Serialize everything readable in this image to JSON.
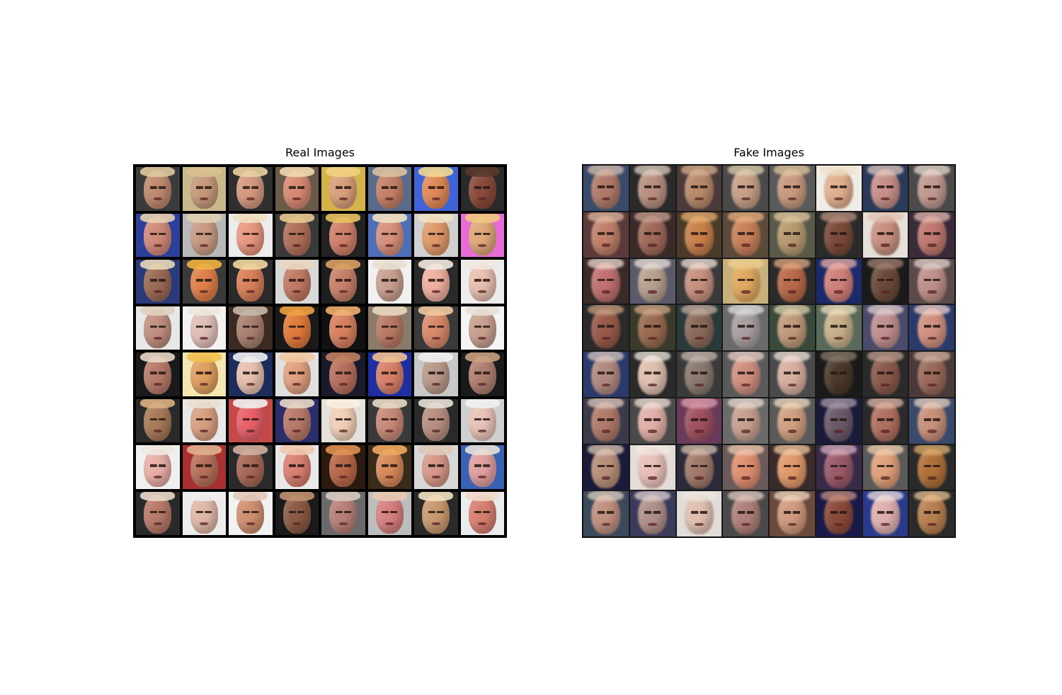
{
  "panels": {
    "real": {
      "title": "Real Images"
    },
    "fake": {
      "title": "Fake Images"
    }
  },
  "colors": {
    "real_backgrounds": [
      "#3b3b3b",
      "#c9b98a",
      "#2f2f2f",
      "#6b5a4a",
      "#d4b44a",
      "#5a6a8a",
      "#3f63d8",
      "#2a2a2a",
      "#2c3f9a",
      "#b8b8b8",
      "#ececec",
      "#3a3a3a",
      "#222222",
      "#4f6eb8",
      "#d0d0d0",
      "#e96bd6",
      "#2a3a7a",
      "#3a3a3a",
      "#2a2a2a",
      "#d8d8d8",
      "#1e1e1e",
      "#f0f0f0",
      "#2a2a2a",
      "#ececec",
      "#e8e8e8",
      "#f2f2f2",
      "#3a2a22",
      "#1a1a1a",
      "#111111",
      "#8a7a6a",
      "#3a3a3a",
      "#f4f4f4",
      "#1a1a1a",
      "#f3e6b0",
      "#1d2c5a",
      "#e0e0e0",
      "#1a1a2a",
      "#1f2f9f",
      "#c8c8c8",
      "#1a1a1a",
      "#2a2a2a",
      "#e8e8e8",
      "#c44a4a",
      "#2a2e6a",
      "#e4e0dc",
      "#3a3a3a",
      "#2a2a2a",
      "#cfcfcf",
      "#f0f0f0",
      "#a83030",
      "#2a2a2a",
      "#e8e8e8",
      "#2a1a10",
      "#3a2a1a",
      "#d8d8d8",
      "#3a62b4",
      "#2a2a2a",
      "#ececec",
      "#f2f2f2",
      "#1a1a1a",
      "#6a6a6a",
      "#bdbdbd",
      "#2a2a2a",
      "#e8ecec"
    ],
    "fake_backgrounds": [
      "#3a4a6a",
      "#2a2a2a",
      "#4a3a3a",
      "#4a4a4a",
      "#5a5a5a",
      "#f0ece6",
      "#2a3a5a",
      "#4a4a4a",
      "#5a3a3a",
      "#3a2a2a",
      "#4a3a2a",
      "#5a4a3a",
      "#5a5a4a",
      "#2a2a2a",
      "#e6e0da",
      "#3a2a3a",
      "#3a2a2a",
      "#5a5a6a",
      "#3a3a3a",
      "#c8b07a",
      "#2a2a2a",
      "#1a2a6a",
      "#1a1a1a",
      "#5a4a4a",
      "#2a2a2a",
      "#3a3a2a",
      "#2a3a3a",
      "#6a6a6a",
      "#3a4a3a",
      "#5a6a5a",
      "#4a4a6a",
      "#2a3a6a",
      "#2a3a6a",
      "#2a2a2a",
      "#3a3a3a",
      "#5a5a5a",
      "#4a4a4a",
      "#1a1a1a",
      "#2a2a2a",
      "#4a3a3a",
      "#3a3a4a",
      "#4a4a4a",
      "#6a3a5a",
      "#6a6a6a",
      "#5a5a5a",
      "#1a1a3a",
      "#2a2a2a",
      "#3a4a6a",
      "#1a1a3a",
      "#e4dcd8",
      "#2a2a3a",
      "#6a5a5a",
      "#3a2a2a",
      "#3a2a4a",
      "#5a5a5a",
      "#2a2a2a",
      "#3a4a5a",
      "#3a3a5a",
      "#e0dcd8",
      "#4a4a4a",
      "#6a4a3a",
      "#1a1a4a",
      "#2a3a8a",
      "#2a2a2a"
    ],
    "real_faces": [
      "#c08a6e",
      "#c69a7a",
      "#d69a80",
      "#d88a74",
      "#d9a07a",
      "#c58068",
      "#e08a5a",
      "#8a4a3a",
      "#d08a78",
      "#c89a84",
      "#e89880",
      "#b0705a",
      "#d0806a",
      "#d8907c",
      "#e09a6a",
      "#e0a878",
      "#9a6a54",
      "#e0804a",
      "#d8805a",
      "#c27a64",
      "#c8806a",
      "#c8a090",
      "#f0b0a0",
      "#e8c0b0",
      "#c09080",
      "#e0c0b8",
      "#a88070",
      "#e07a3a",
      "#d88060",
      "#b87a64",
      "#d88a6a",
      "#c8a090",
      "#b87a6a",
      "#e0a060",
      "#e8c0b0",
      "#e0a080",
      "#b87060",
      "#d8806a",
      "#b89a8a",
      "#b08070",
      "#a87a5a",
      "#d8a080",
      "#e8606a",
      "#b87a6a",
      "#f0d0b8",
      "#c88a78",
      "#b89080",
      "#e8c4b8",
      "#e8b0a8",
      "#b8705a",
      "#a86858",
      "#d88070",
      "#b86848",
      "#d88a5a",
      "#d89888",
      "#e0a0a0",
      "#b87a6a",
      "#e0b8a8",
      "#d09070",
      "#8a5a44",
      "#b8807a",
      "#d88080",
      "#c89a70",
      "#d88070"
    ],
    "fake_faces": [
      "#b07a6a",
      "#b89080",
      "#b88a6a",
      "#c8a088",
      "#c89a80",
      "#e0b090",
      "#c8908a",
      "#c09a90",
      "#c0806a",
      "#a06a5a",
      "#c8804a",
      "#c8805a",
      "#b89a70",
      "#7a4a3a",
      "#c89080",
      "#c07870",
      "#c07070",
      "#b8a090",
      "#c89080",
      "#e0a860",
      "#b86a4a",
      "#d0807a",
      "#6a4a3a",
      "#c0908a",
      "#9a5a4a",
      "#9a6a50",
      "#8a6a5a",
      "#a8a0a0",
      "#c09a7a",
      "#c8b08a",
      "#c09090",
      "#d09080",
      "#b08a80",
      "#e0c0b0",
      "#8a7a70",
      "#d09080",
      "#d8b0a0",
      "#4a3a2a",
      "#8a5a4a",
      "#9a6a5a",
      "#b07a6a",
      "#e0b0a8",
      "#a05060",
      "#c8a090",
      "#d0a080",
      "#6a5a6a",
      "#b07060",
      "#c8907a",
      "#b8907a",
      "#e8c0b8",
      "#a07a6a",
      "#e09070",
      "#e09a6a",
      "#9a5a6a",
      "#e0a07a",
      "#b0703a",
      "#c09080",
      "#b0908a",
      "#e0c0b0",
      "#b0807a",
      "#d09a80",
      "#8a4a3a",
      "#e0b0b0",
      "#b88050"
    ],
    "real_hair": [
      "#e0c8a0",
      "#d8c090",
      "#e8d0a0",
      "#f0d8b0",
      "#f0d080",
      "#d8c0a0",
      "#f0d890",
      "#5a3a2a",
      "#e8d0b0",
      "#e0d0b0",
      "#f0e0c0",
      "#e8c890",
      "#e8c060",
      "#f0e0c0",
      "#f0e0c0",
      "#f0c880",
      "#e8d8b8",
      "#f0b040",
      "#f0d8a0",
      "#e8d8c0",
      "#d8a060",
      "#e8e0d0",
      "#f0e8e0",
      "#f0e8e0",
      "#e0d0c0",
      "#f0e8e0",
      "#c8b8a8",
      "#f0a040",
      "#f0b070",
      "#e8d8c0",
      "#f0c8a0",
      "#e8e0d8",
      "#e8d8c8",
      "#f0c050",
      "#f0f0f0",
      "#f0c8a0",
      "#c08060",
      "#f0c090",
      "#f0f0f0",
      "#c8a080",
      "#d8b080",
      "#e8e0d0",
      "#f0f0f0",
      "#e8d8c8",
      "#f8f0e0",
      "#e8d8c8",
      "#e8e0d8",
      "#f0f0f0",
      "#f0e8e0",
      "#e0b090",
      "#d0b0a0",
      "#f0c8b0",
      "#e09050",
      "#f0a860",
      "#e0c8b8",
      "#e8e0d8",
      "#e8d8c8",
      "#f0f0f0",
      "#e0c8b8",
      "#c09070",
      "#d8c8c0",
      "#e8c8b0",
      "#f0e0c0",
      "#f0d8c8"
    ],
    "fake_hair": [
      "#d8c0b0",
      "#e0d0c0",
      "#d8b090",
      "#e0d0b0",
      "#e0c8a0",
      "#f0e0c8",
      "#e0c8c0",
      "#e8d8d0",
      "#e0b8a0",
      "#c8a090",
      "#e8b070",
      "#e8b080",
      "#e0c8a0",
      "#b89080",
      "#e0c0b0",
      "#e0b8b0",
      "#f0d8d0",
      "#e8e0d8",
      "#f0e0d8",
      "#f0d090",
      "#e0a880",
      "#e8b0a8",
      "#a08070",
      "#e0d0c8",
      "#c8a080",
      "#d0a888",
      "#c8b0a0",
      "#e0e0e0",
      "#e0d0b0",
      "#f0e0c0",
      "#e0d0d0",
      "#f0d0c8",
      "#d8c8c0",
      "#f0e8e0",
      "#c8b8b0",
      "#e8d0c8",
      "#f0e0d8",
      "#8a7a6a",
      "#c0a090",
      "#d0b0a0",
      "#e0c8c0",
      "#f0e0d8",
      "#e0a0b0",
      "#e8d8d0",
      "#f0d8c0",
      "#a898a8",
      "#e0b8a8",
      "#e8d0c0",
      "#e0c8b8",
      "#f0e8e0",
      "#d8c0b0",
      "#f0c8b0",
      "#f0c8a0",
      "#d8b0c0",
      "#f0d0b0",
      "#e0b070",
      "#e0d0c0",
      "#e0d0d0",
      "#f0e8e0",
      "#e0c8c0",
      "#f0d8c0",
      "#c89080",
      "#f0e0e0",
      "#e8c090"
    ]
  }
}
